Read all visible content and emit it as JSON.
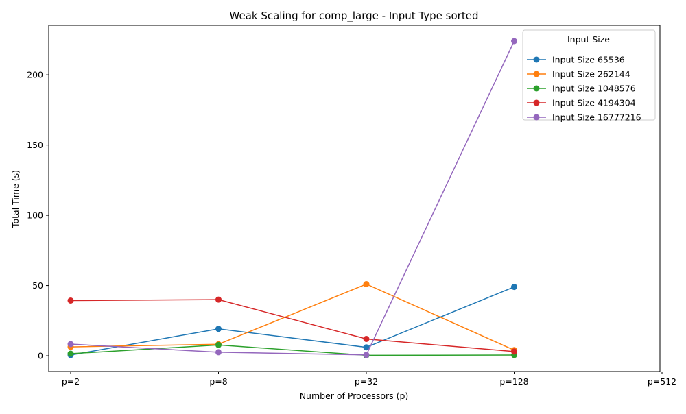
{
  "chart_data": {
    "type": "line",
    "title": "Weak Scaling for comp_large - Input Type sorted",
    "xlabel": "Number of Processors (p)",
    "ylabel": "Total Time (s)",
    "categories": [
      "p=2",
      "p=8",
      "p=32",
      "p=128",
      "p=512"
    ],
    "ylim": [
      -11.2,
      235.2
    ],
    "yticks": [
      0,
      50,
      100,
      150,
      200
    ],
    "grid": false,
    "legend": {
      "title": "Input Size",
      "placement": "top-right"
    },
    "series": [
      {
        "name": "Input Size 65536",
        "color": "#1f77b4",
        "values": [
          0.5,
          19.2,
          6.0,
          49.0,
          null
        ]
      },
      {
        "name": "Input Size 262144",
        "color": "#ff7f0e",
        "values": [
          6.3,
          8.2,
          51.0,
          4.0,
          null
        ]
      },
      {
        "name": "Input Size 1048576",
        "color": "#2ca02c",
        "values": [
          1.5,
          7.7,
          0.3,
          0.5,
          null
        ]
      },
      {
        "name": "Input Size 4194304",
        "color": "#d62728",
        "values": [
          39.3,
          40.0,
          12.0,
          3.0,
          null
        ]
      },
      {
        "name": "Input Size 16777216",
        "color": "#9467bd",
        "values": [
          8.3,
          2.5,
          0.6,
          224.0,
          null
        ]
      }
    ]
  }
}
